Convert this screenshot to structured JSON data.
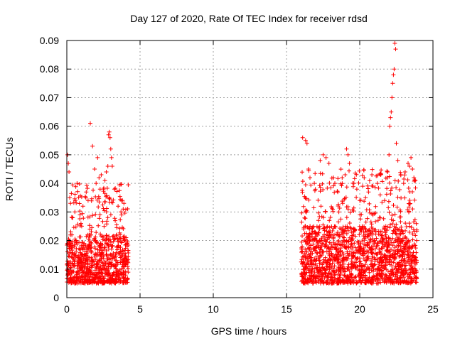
{
  "chart_data": {
    "type": "scatter",
    "title": "Day 127 of 2020, Rate Of TEC Index for receiver rdsd",
    "xlabel": "GPS time / hours",
    "ylabel": "ROTI / TECUs",
    "xlim": [
      0,
      25
    ],
    "ylim": [
      0,
      0.09
    ],
    "x_ticks": [
      "0",
      "5",
      "10",
      "15",
      "20",
      "25"
    ],
    "y_ticks": [
      "0",
      "0.01",
      "0.02",
      "0.03",
      "0.04",
      "0.05",
      "0.06",
      "0.07",
      "0.08",
      "0.09"
    ],
    "grid": true,
    "legend": "none",
    "marker": "+",
    "marker_color": "#ff0000",
    "series": [
      {
        "segments": [
          {
            "x_range": [
              0.0,
              4.2
            ],
            "typical_range": [
              0.005,
              0.022
            ],
            "upper_range": [
              0.022,
              0.04
            ]
          },
          {
            "x_range": [
              16.0,
              23.9
            ],
            "typical_range": [
              0.005,
              0.025
            ],
            "upper_range": [
              0.025,
              0.045
            ]
          }
        ],
        "values": [
          [
            0.05,
            0.05
          ],
          [
            0.1,
            0.047
          ],
          [
            0.15,
            0.044
          ],
          [
            0.2,
            0.035
          ],
          [
            0.25,
            0.033
          ],
          [
            0.4,
            0.028
          ],
          [
            0.55,
            0.03
          ],
          [
            0.7,
            0.04
          ],
          [
            0.9,
            0.029
          ],
          [
            1.1,
            0.032
          ],
          [
            1.3,
            0.035
          ],
          [
            1.45,
            0.034
          ],
          [
            1.6,
            0.061
          ],
          [
            1.75,
            0.053
          ],
          [
            1.9,
            0.045
          ],
          [
            2.0,
            0.04
          ],
          [
            2.1,
            0.049
          ],
          [
            2.2,
            0.042
          ],
          [
            2.35,
            0.043
          ],
          [
            2.5,
            0.038
          ],
          [
            2.6,
            0.041
          ],
          [
            2.7,
            0.044
          ],
          [
            2.8,
            0.046
          ],
          [
            2.85,
            0.057
          ],
          [
            2.9,
            0.058
          ],
          [
            2.95,
            0.056
          ],
          [
            3.0,
            0.052
          ],
          [
            3.05,
            0.049
          ],
          [
            3.1,
            0.046
          ],
          [
            3.25,
            0.038
          ],
          [
            3.5,
            0.032
          ],
          [
            3.7,
            0.03
          ],
          [
            3.8,
            0.034
          ],
          [
            3.9,
            0.033
          ],
          [
            4.05,
            0.021
          ],
          [
            16.1,
            0.056
          ],
          [
            16.3,
            0.055
          ],
          [
            16.4,
            0.054
          ],
          [
            16.5,
            0.045
          ],
          [
            16.6,
            0.042
          ],
          [
            16.9,
            0.04
          ],
          [
            17.3,
            0.048
          ],
          [
            17.5,
            0.05
          ],
          [
            17.7,
            0.049
          ],
          [
            17.9,
            0.047
          ],
          [
            18.3,
            0.04
          ],
          [
            18.5,
            0.037
          ],
          [
            18.8,
            0.042
          ],
          [
            19.0,
            0.043
          ],
          [
            19.1,
            0.052
          ],
          [
            19.2,
            0.05
          ],
          [
            19.3,
            0.047
          ],
          [
            19.6,
            0.04
          ],
          [
            19.8,
            0.038
          ],
          [
            20.2,
            0.039
          ],
          [
            20.4,
            0.035
          ],
          [
            20.6,
            0.037
          ],
          [
            20.9,
            0.039
          ],
          [
            21.2,
            0.04
          ],
          [
            21.4,
            0.036
          ],
          [
            21.7,
            0.034
          ],
          [
            21.9,
            0.044
          ],
          [
            22.0,
            0.05
          ],
          [
            22.05,
            0.06
          ],
          [
            22.1,
            0.063
          ],
          [
            22.15,
            0.065
          ],
          [
            22.2,
            0.07
          ],
          [
            22.25,
            0.075
          ],
          [
            22.3,
            0.078
          ],
          [
            22.35,
            0.08
          ],
          [
            22.4,
            0.089
          ],
          [
            22.45,
            0.087
          ],
          [
            22.5,
            0.054
          ],
          [
            22.6,
            0.048
          ],
          [
            22.8,
            0.043
          ],
          [
            23.0,
            0.04
          ],
          [
            23.1,
            0.044
          ],
          [
            23.3,
            0.047
          ],
          [
            23.4,
            0.046
          ],
          [
            23.5,
            0.049
          ],
          [
            23.6,
            0.045
          ],
          [
            23.7,
            0.042
          ],
          [
            23.8,
            0.041
          ]
        ]
      }
    ]
  }
}
